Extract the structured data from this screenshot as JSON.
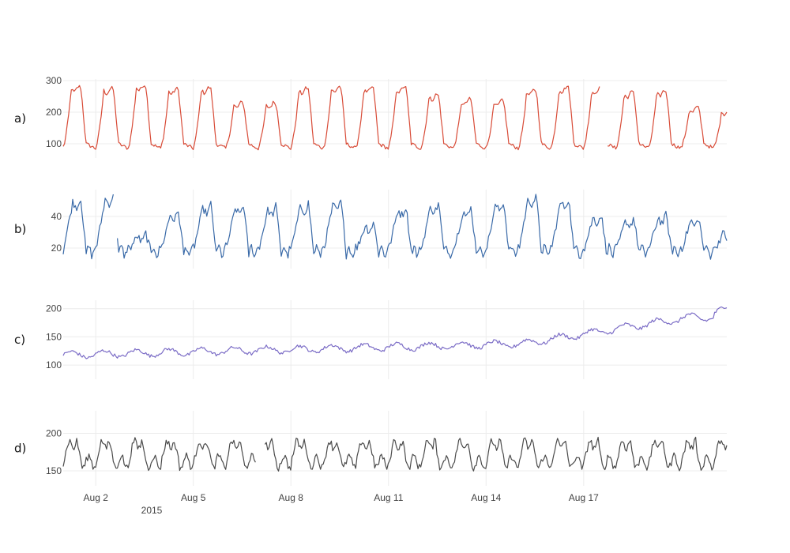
{
  "chart_data": {
    "type": "line",
    "shared_x_axis": {
      "start": "Aug 1 2015",
      "end": "Aug 20 2015",
      "range_days": [
        0,
        20.4
      ],
      "tick_days": [
        1,
        4,
        7,
        10,
        13,
        16
      ],
      "tick_labels": [
        "Aug 2",
        "Aug 5",
        "Aug 8",
        "Aug 11",
        "Aug 14",
        "Aug 17"
      ],
      "sub_label": "2015"
    },
    "panels": [
      {
        "label": "a)",
        "color": "#d84b37",
        "yticks": [
          100,
          200,
          300
        ],
        "ylim": [
          55,
          305
        ],
        "sample_points": [
          [
            0.0,
            88
          ],
          [
            0.3,
            260
          ],
          [
            0.5,
            270
          ],
          [
            0.6,
            100
          ],
          [
            1.0,
            85
          ],
          [
            1.4,
            275
          ],
          [
            1.8,
            90
          ],
          [
            3.0,
            265
          ],
          [
            5.0,
            225
          ],
          [
            7.0,
            270
          ],
          [
            9.0,
            270
          ],
          [
            11.0,
            230
          ],
          [
            13.0,
            280
          ],
          [
            15.0,
            70
          ],
          [
            17.0,
            260
          ],
          [
            19.0,
            220
          ],
          [
            20.4,
            185
          ]
        ],
        "gaps_days": [
          [
            16.5,
            16.7
          ]
        ]
      },
      {
        "label": "b)",
        "color": "#3a6aa8",
        "yticks": [
          20,
          40
        ],
        "ylim": [
          7,
          57
        ],
        "sample_points": [
          [
            0.0,
            20
          ],
          [
            0.3,
            47
          ],
          [
            0.6,
            49
          ],
          [
            1.0,
            17
          ],
          [
            1.5,
            47
          ],
          [
            2.0,
            20
          ],
          [
            3.0,
            27
          ],
          [
            4.0,
            42
          ],
          [
            5.0,
            45
          ],
          [
            7.0,
            47
          ],
          [
            8.0,
            30
          ],
          [
            10.0,
            45
          ],
          [
            12.0,
            45
          ],
          [
            14.0,
            50
          ],
          [
            16.0,
            38
          ],
          [
            18.0,
            37
          ],
          [
            19.5,
            13
          ],
          [
            20.0,
            38
          ],
          [
            20.4,
            29
          ]
        ],
        "gaps_days": [
          [
            1.55,
            1.65
          ]
        ]
      },
      {
        "label": "c)",
        "color": "#7b6cc6",
        "yticks": [
          100,
          150,
          200
        ],
        "ylim": [
          75,
          215
        ],
        "sample_points": [
          [
            0.0,
            114
          ],
          [
            2.0,
            125
          ],
          [
            4.0,
            128
          ],
          [
            6.0,
            133
          ],
          [
            8.0,
            137
          ],
          [
            10.0,
            135
          ],
          [
            12.0,
            137
          ],
          [
            14.0,
            150
          ],
          [
            15.5,
            165
          ],
          [
            17.0,
            183
          ],
          [
            18.0,
            185
          ],
          [
            19.5,
            183
          ],
          [
            20.4,
            200
          ]
        ],
        "gaps_days": []
      },
      {
        "label": "d)",
        "color": "#4a4a4a",
        "yticks": [
          150,
          200
        ],
        "ylim": [
          130,
          230
        ],
        "sample_points": [
          [
            0.0,
            160
          ],
          [
            1.0,
            190
          ],
          [
            2.0,
            195
          ],
          [
            4.0,
            185
          ],
          [
            6.0,
            195
          ],
          [
            8.0,
            180
          ],
          [
            10.0,
            180
          ],
          [
            12.0,
            175
          ],
          [
            14.0,
            180
          ],
          [
            16.0,
            180
          ],
          [
            18.0,
            185
          ],
          [
            20.4,
            160
          ]
        ],
        "gaps_days": [
          [
            5.95,
            6.2
          ]
        ]
      }
    ]
  }
}
